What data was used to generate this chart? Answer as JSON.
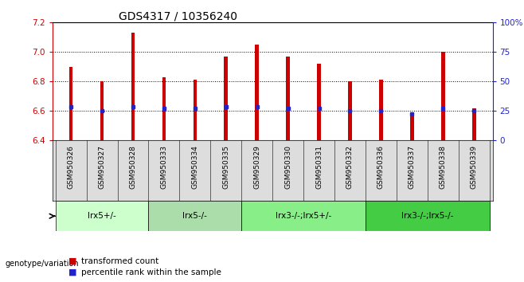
{
  "title": "GDS4317 / 10356240",
  "samples": [
    "GSM950326",
    "GSM950327",
    "GSM950328",
    "GSM950333",
    "GSM950334",
    "GSM950335",
    "GSM950329",
    "GSM950330",
    "GSM950331",
    "GSM950332",
    "GSM950336",
    "GSM950337",
    "GSM950338",
    "GSM950339"
  ],
  "transformed_count": [
    6.9,
    6.8,
    7.13,
    6.83,
    6.81,
    6.97,
    7.05,
    6.97,
    6.92,
    6.8,
    6.81,
    6.58,
    7.0,
    6.62
  ],
  "percentile_rank": [
    6.63,
    6.6,
    6.63,
    6.62,
    6.62,
    6.63,
    6.63,
    6.62,
    6.62,
    6.6,
    6.6,
    6.58,
    6.62,
    6.6
  ],
  "ylim": [
    6.4,
    7.2
  ],
  "y2lim": [
    0,
    100
  ],
  "yticks": [
    6.4,
    6.6,
    6.8,
    7.0,
    7.2
  ],
  "y2ticks": [
    0,
    25,
    50,
    75,
    100
  ],
  "bar_color": "#cc0000",
  "dot_color": "#2222cc",
  "bar_width": 0.12,
  "groups": [
    {
      "label": "lrx5+/-",
      "start": 0,
      "end": 2,
      "color": "#ccffcc"
    },
    {
      "label": "lrx5-/-",
      "start": 3,
      "end": 5,
      "color": "#aaddaa"
    },
    {
      "label": "lrx3-/-;lrx5+/-",
      "start": 6,
      "end": 9,
      "color": "#88ee88"
    },
    {
      "label": "lrx3-/-;lrx5-/-",
      "start": 10,
      "end": 13,
      "color": "#44cc44"
    }
  ],
  "legend_tc_label": "transformed count",
  "legend_pr_label": "percentile rank within the sample",
  "genotype_label": "genotype/variation",
  "dotted_lines": [
    6.6,
    6.8,
    7.0
  ],
  "tick_fontsize": 7.5,
  "title_fontsize": 10,
  "sample_area_color": "#dddddd",
  "group_area_color": "#f0f0f0"
}
